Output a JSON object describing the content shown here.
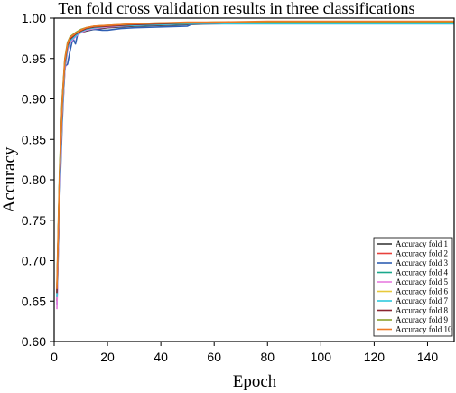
{
  "chart_data": {
    "type": "line",
    "title": "Ten fold cross validation results in three classifications",
    "xlabel": "Epoch",
    "ylabel": "Accuracy",
    "xlim": [
      0,
      150
    ],
    "ylim": [
      0.6,
      1.0
    ],
    "xticks": [
      0,
      20,
      40,
      60,
      80,
      100,
      120,
      140
    ],
    "yticks": [
      0.6,
      0.65,
      0.7,
      0.75,
      0.8,
      0.85,
      0.9,
      0.95,
      1.0
    ],
    "ytick_labels": [
      "0.60",
      "0.65",
      "0.70",
      "0.75",
      "0.80",
      "0.85",
      "0.90",
      "0.95",
      "1.00"
    ],
    "grid": false,
    "legend_position": "bottom-right",
    "series": [
      {
        "name": "Accuracy fold 1",
        "color": "#3a3a3a",
        "x": [
          1,
          2,
          3,
          4,
          5,
          6,
          8,
          10,
          12,
          15,
          20,
          30,
          40,
          50,
          60,
          80,
          100,
          120,
          150
        ],
        "y": [
          0.66,
          0.8,
          0.89,
          0.94,
          0.965,
          0.972,
          0.978,
          0.982,
          0.984,
          0.986,
          0.988,
          0.99,
          0.991,
          0.992,
          0.993,
          0.994,
          0.994,
          0.994,
          0.994
        ]
      },
      {
        "name": "Accuracy fold 2",
        "color": "#e8413c",
        "x": [
          1,
          2,
          3,
          4,
          5,
          6,
          8,
          10,
          12,
          15,
          20,
          30,
          40,
          50,
          60,
          80,
          100,
          120,
          150
        ],
        "y": [
          0.65,
          0.79,
          0.88,
          0.935,
          0.962,
          0.97,
          0.977,
          0.982,
          0.985,
          0.987,
          0.989,
          0.991,
          0.992,
          0.993,
          0.994,
          0.995,
          0.995,
          0.995,
          0.995
        ]
      },
      {
        "name": "Accuracy fold 3",
        "color": "#2f5fb3",
        "x": [
          1,
          2,
          3,
          4,
          5,
          6,
          7,
          8,
          9,
          10,
          12,
          15,
          18,
          20,
          25,
          30,
          40,
          50,
          52,
          60,
          80,
          100,
          120,
          150
        ],
        "y": [
          0.645,
          0.77,
          0.87,
          0.94,
          0.943,
          0.96,
          0.975,
          0.968,
          0.983,
          0.985,
          0.985,
          0.986,
          0.985,
          0.985,
          0.987,
          0.988,
          0.989,
          0.99,
          0.993,
          0.993,
          0.993,
          0.993,
          0.993,
          0.993
        ]
      },
      {
        "name": "Accuracy fold 4",
        "color": "#1aa88c",
        "x": [
          1,
          2,
          3,
          4,
          5,
          6,
          8,
          10,
          12,
          15,
          20,
          30,
          40,
          50,
          60,
          80,
          100,
          120,
          150
        ],
        "y": [
          0.66,
          0.8,
          0.9,
          0.945,
          0.966,
          0.974,
          0.98,
          0.984,
          0.986,
          0.988,
          0.99,
          0.992,
          0.993,
          0.993,
          0.994,
          0.994,
          0.994,
          0.994,
          0.994
        ]
      },
      {
        "name": "Accuracy fold 5",
        "color": "#e77be0",
        "x": [
          1,
          2,
          3,
          4,
          5,
          6,
          8,
          10,
          12,
          15,
          20,
          30,
          40,
          50,
          60,
          80,
          100,
          120,
          150
        ],
        "y": [
          0.64,
          0.78,
          0.88,
          0.935,
          0.96,
          0.97,
          0.977,
          0.982,
          0.985,
          0.987,
          0.989,
          0.991,
          0.992,
          0.993,
          0.993,
          0.994,
          0.994,
          0.994,
          0.994
        ]
      },
      {
        "name": "Accuracy fold 6",
        "color": "#e8c93a",
        "x": [
          1,
          2,
          3,
          4,
          5,
          6,
          8,
          10,
          12,
          15,
          20,
          30,
          40,
          50,
          60,
          80,
          100,
          120,
          150
        ],
        "y": [
          0.66,
          0.8,
          0.89,
          0.942,
          0.965,
          0.973,
          0.979,
          0.984,
          0.986,
          0.988,
          0.99,
          0.992,
          0.993,
          0.994,
          0.995,
          0.995,
          0.995,
          0.995,
          0.995
        ]
      },
      {
        "name": "Accuracy fold 7",
        "color": "#2ec9de",
        "x": [
          1,
          2,
          3,
          4,
          5,
          6,
          8,
          10,
          12,
          15,
          20,
          30,
          40,
          50,
          60,
          80,
          100,
          120,
          150
        ],
        "y": [
          0.655,
          0.79,
          0.885,
          0.94,
          0.963,
          0.972,
          0.978,
          0.983,
          0.986,
          0.988,
          0.99,
          0.991,
          0.992,
          0.993,
          0.993,
          0.993,
          0.993,
          0.993,
          0.993
        ]
      },
      {
        "name": "Accuracy fold 8",
        "color": "#8b2430",
        "x": [
          1,
          2,
          3,
          4,
          5,
          6,
          8,
          10,
          12,
          15,
          20,
          30,
          40,
          50,
          60,
          80,
          100,
          120,
          150
        ],
        "y": [
          0.66,
          0.8,
          0.895,
          0.945,
          0.966,
          0.974,
          0.98,
          0.984,
          0.987,
          0.989,
          0.99,
          0.992,
          0.993,
          0.994,
          0.994,
          0.995,
          0.995,
          0.995,
          0.995
        ]
      },
      {
        "name": "Accuracy fold 9",
        "color": "#8ea12d",
        "x": [
          1,
          2,
          3,
          4,
          5,
          6,
          8,
          10,
          12,
          15,
          20,
          30,
          40,
          50,
          60,
          80,
          100,
          120,
          150
        ],
        "y": [
          0.67,
          0.81,
          0.9,
          0.95,
          0.97,
          0.977,
          0.982,
          0.986,
          0.988,
          0.99,
          0.991,
          0.993,
          0.994,
          0.994,
          0.995,
          0.995,
          0.995,
          0.995,
          0.995
        ]
      },
      {
        "name": "Accuracy fold 10",
        "color": "#ef7a26",
        "x": [
          1,
          2,
          3,
          4,
          5,
          6,
          8,
          10,
          12,
          15,
          20,
          30,
          40,
          50,
          60,
          80,
          100,
          120,
          150
        ],
        "y": [
          0.665,
          0.8,
          0.895,
          0.948,
          0.968,
          0.976,
          0.981,
          0.985,
          0.988,
          0.99,
          0.991,
          0.993,
          0.994,
          0.995,
          0.995,
          0.996,
          0.996,
          0.996,
          0.996
        ]
      }
    ]
  }
}
